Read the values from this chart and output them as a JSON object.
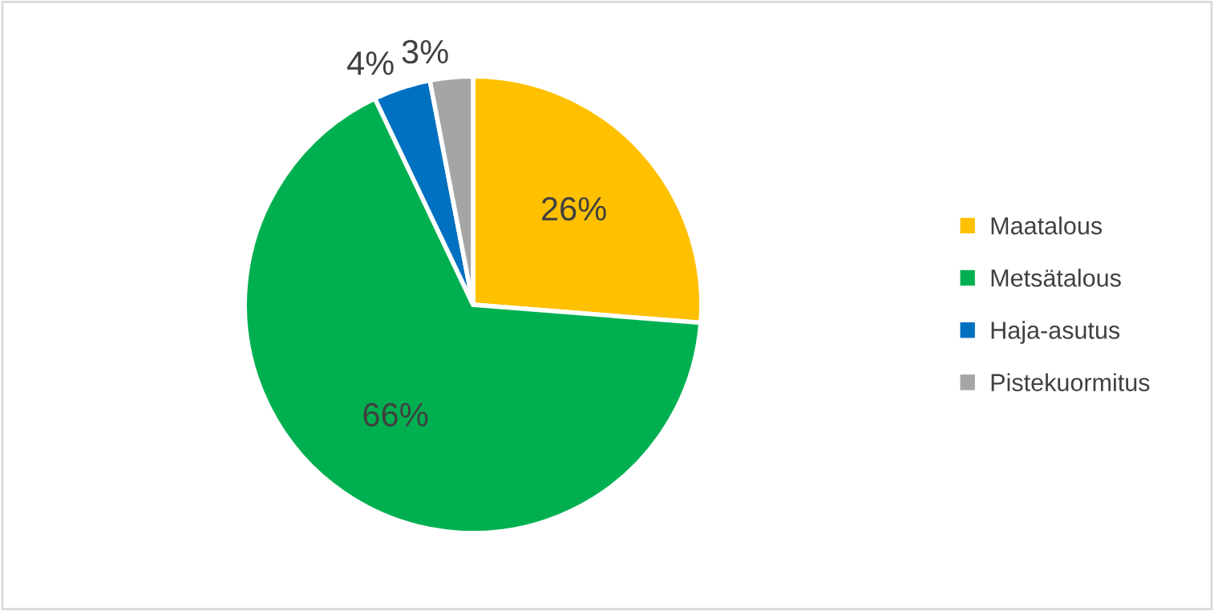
{
  "chart_data": {
    "type": "pie",
    "categories": [
      "Maatalous",
      "Metsätalous",
      "Haja-asutus",
      "Pistekuormitus"
    ],
    "values": [
      26,
      66,
      4,
      3
    ],
    "colors": [
      "#ffc000",
      "#00b050",
      "#0070c0",
      "#a5a5a5"
    ],
    "value_labels": [
      "26%",
      "66%",
      "4%",
      "3%"
    ],
    "legend": "right"
  }
}
